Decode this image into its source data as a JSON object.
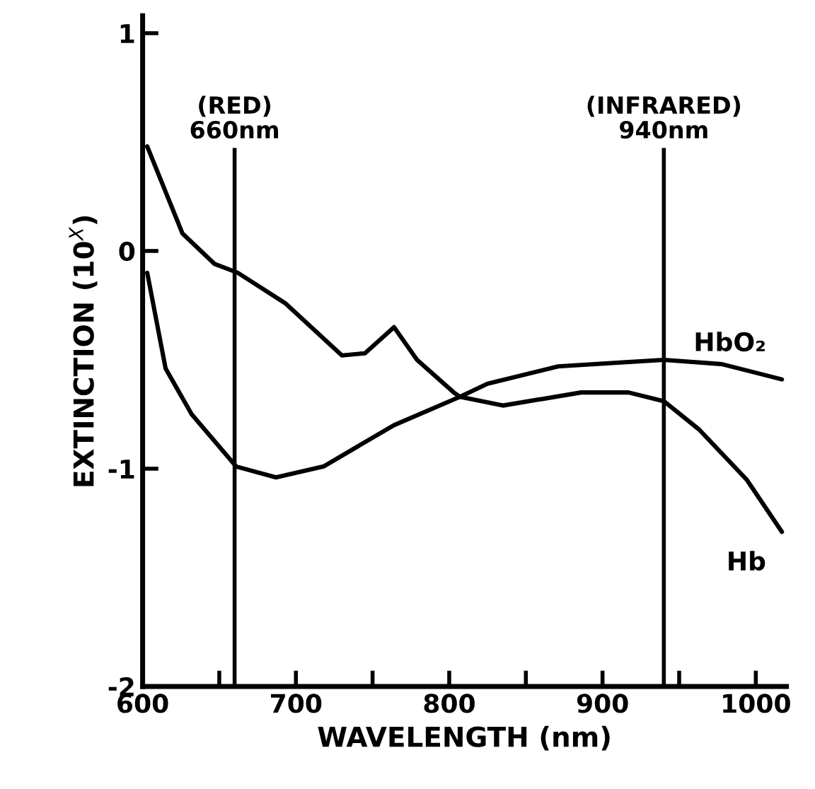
{
  "chart_data": {
    "type": "line",
    "xlabel": "WAVELENGTH (nm)",
    "ylabel": "EXTINCTION (10$^{X}$)",
    "xlim": [
      600,
      1020
    ],
    "ylim": [
      -2,
      1.08
    ],
    "xticks": [
      600,
      {
        "value": 650,
        "label": null
      },
      700,
      {
        "value": 750,
        "label": null
      },
      800,
      {
        "value": 850,
        "label": null
      },
      900,
      {
        "value": 950,
        "label": null
      },
      1000
    ],
    "yticks": [
      -2,
      -1,
      0,
      1
    ],
    "grid": false,
    "legend": false,
    "marker": "none",
    "line_style": "solid",
    "series": [
      {
        "name": "Hb",
        "color": "#000000",
        "x": [
          603,
          626,
          647,
          662,
          693,
          730,
          745,
          764,
          779,
          803,
          807,
          835,
          886,
          917,
          940,
          963,
          994,
          1017
        ],
        "values": [
          0.48,
          0.08,
          -0.06,
          -0.1,
          -0.24,
          -0.48,
          -0.47,
          -0.35,
          -0.5,
          -0.65,
          -0.67,
          -0.71,
          -0.65,
          -0.65,
          -0.69,
          -0.82,
          -1.05,
          -1.29
        ]
      },
      {
        "name": "HbO₂",
        "color": "#000000",
        "x": [
          603,
          615,
          632,
          661,
          687,
          718,
          764,
          807,
          825,
          871,
          940,
          978,
          1017
        ],
        "values": [
          -0.1,
          -0.54,
          -0.75,
          -0.99,
          -1.04,
          -0.99,
          -0.8,
          -0.67,
          -0.61,
          -0.53,
          -0.5,
          -0.52,
          -0.59
        ]
      }
    ],
    "ref_lines": [
      {
        "axis": "x",
        "value": 660,
        "label": "(RED)\n660nm",
        "color": "#000000",
        "line_style": "solid"
      },
      {
        "axis": "x",
        "value": 940,
        "label": "(INFRARED)\n940nm",
        "color": "#000000",
        "line_style": "solid"
      }
    ]
  }
}
